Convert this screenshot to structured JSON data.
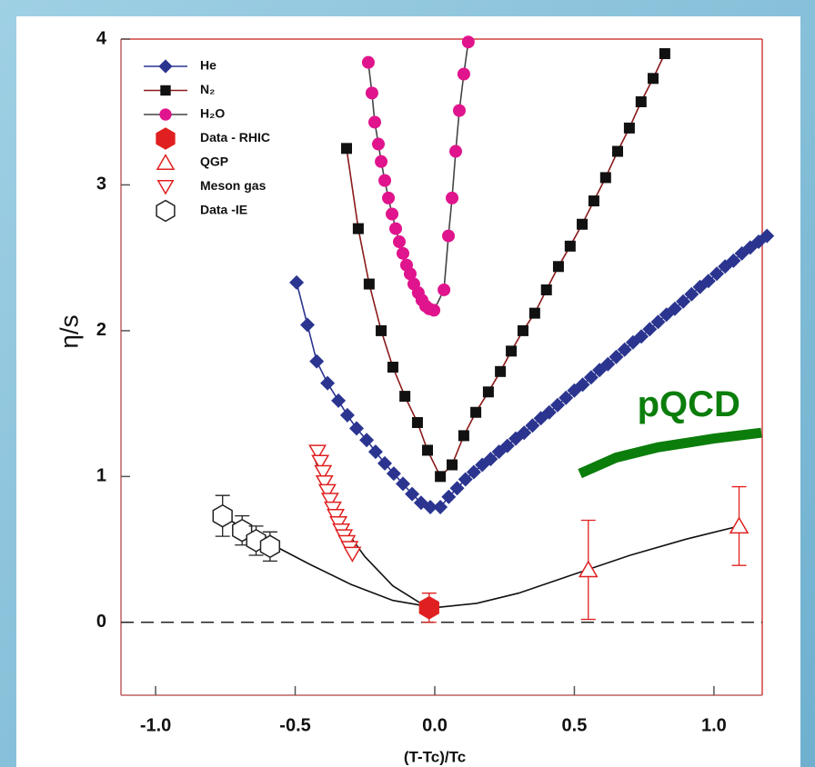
{
  "chart_data": {
    "type": "scatter",
    "xlabel": "(T-Tc)/Tc",
    "ylabel": "η/s",
    "xlim": [
      -1.124,
      1.173
    ],
    "ylim": [
      -0.5,
      4
    ],
    "xticks": [
      {
        "value": -1.0,
        "label": "-1.0"
      },
      -0.5,
      {
        "value": 0.0,
        "label": "0.0"
      },
      0.5,
      {
        "value": 1.0,
        "label": "1.0"
      }
    ],
    "yticks": [
      0,
      1,
      2,
      3,
      4
    ],
    "zero_line": true,
    "legend": "upper left",
    "series": [
      {
        "name": "He",
        "color": "#2b3590",
        "line_color": "#2b3590",
        "marker": "diamond",
        "filled": true,
        "line": true,
        "x": [
          -0.495,
          -0.456,
          -0.423,
          -0.384,
          -0.345,
          -0.313,
          -0.28,
          -0.244,
          -0.212,
          -0.179,
          -0.147,
          -0.114,
          -0.081,
          -0.049,
          -0.016,
          0.02,
          0.05,
          0.08,
          0.11,
          0.14,
          0.17,
          0.2,
          0.23,
          0.26,
          0.29,
          0.32,
          0.35,
          0.38,
          0.41,
          0.44,
          0.47,
          0.5,
          0.53,
          0.56,
          0.59,
          0.62,
          0.65,
          0.68,
          0.71,
          0.74,
          0.77,
          0.8,
          0.83,
          0.86,
          0.89,
          0.92,
          0.95,
          0.98,
          1.01,
          1.04,
          1.07,
          1.1,
          1.13,
          1.16,
          1.19
        ],
        "values": [
          2.33,
          2.04,
          1.79,
          1.64,
          1.52,
          1.42,
          1.33,
          1.25,
          1.17,
          1.09,
          1.02,
          0.95,
          0.88,
          0.82,
          0.79,
          0.79,
          0.86,
          0.92,
          0.98,
          1.03,
          1.08,
          1.12,
          1.17,
          1.21,
          1.26,
          1.3,
          1.35,
          1.4,
          1.44,
          1.49,
          1.54,
          1.59,
          1.63,
          1.68,
          1.73,
          1.77,
          1.82,
          1.87,
          1.92,
          1.96,
          2.01,
          2.06,
          2.11,
          2.15,
          2.2,
          2.25,
          2.3,
          2.34,
          2.39,
          2.44,
          2.48,
          2.53,
          2.57,
          2.61,
          2.65
        ]
      },
      {
        "name": "N₂",
        "color": "#111111",
        "line_color": "#8b1a1a",
        "marker": "square",
        "filled": true,
        "line": true,
        "x": [
          -0.316,
          -0.274,
          -0.235,
          -0.192,
          -0.15,
          -0.107,
          -0.062,
          -0.026,
          0.02,
          0.062,
          0.104,
          0.147,
          0.192,
          0.235,
          0.274,
          0.316,
          0.358,
          0.4,
          0.443,
          0.485,
          0.528,
          0.57,
          0.612,
          0.655,
          0.697,
          0.739,
          0.782,
          0.824
        ],
        "values": [
          3.25,
          2.7,
          2.32,
          2.0,
          1.75,
          1.55,
          1.37,
          1.18,
          1.0,
          1.08,
          1.28,
          1.44,
          1.58,
          1.72,
          1.86,
          2.0,
          2.12,
          2.28,
          2.44,
          2.58,
          2.73,
          2.89,
          3.05,
          3.23,
          3.39,
          3.57,
          3.73,
          3.9
        ]
      },
      {
        "name": "H₂O",
        "color": "#e0148c",
        "line_color": "#444444",
        "marker": "circle",
        "filled": true,
        "line": true,
        "x": [
          -0.238,
          -0.225,
          -0.215,
          -0.202,
          -0.192,
          -0.179,
          -0.166,
          -0.153,
          -0.14,
          -0.127,
          -0.114,
          -0.101,
          -0.088,
          -0.075,
          -0.059,
          -0.046,
          -0.033,
          -0.02,
          -0.003,
          0.033,
          0.049,
          0.062,
          0.075,
          0.088,
          0.104,
          0.12
        ],
        "values": [
          3.84,
          3.63,
          3.43,
          3.28,
          3.16,
          3.03,
          2.91,
          2.8,
          2.7,
          2.61,
          2.53,
          2.45,
          2.39,
          2.32,
          2.26,
          2.21,
          2.17,
          2.15,
          2.14,
          2.28,
          2.65,
          2.91,
          3.23,
          3.51,
          3.76,
          3.98
        ]
      },
      {
        "name": "Data - RHIC",
        "color": "#e02020",
        "marker": "hexagon",
        "filled": true,
        "line": false,
        "x": [
          -0.02
        ],
        "values": [
          0.1
        ],
        "errors": [
          0.1
        ]
      },
      {
        "name": "QGP",
        "color": "#e02020",
        "marker": "triangle-up",
        "filled": false,
        "line": false,
        "x": [
          0.55,
          1.09
        ],
        "values": [
          0.36,
          0.66
        ],
        "errors": [
          0.34,
          0.27
        ]
      },
      {
        "name": "Meson gas",
        "color": "#e02020",
        "marker": "triangle-down",
        "filled": false,
        "line": false,
        "x": [
          -0.42,
          -0.41,
          -0.4,
          -0.395,
          -0.385,
          -0.375,
          -0.365,
          -0.355,
          -0.345,
          -0.335,
          -0.325,
          -0.315,
          -0.305,
          -0.295
        ],
        "values": [
          1.17,
          1.1,
          1.03,
          0.96,
          0.9,
          0.84,
          0.78,
          0.73,
          0.68,
          0.63,
          0.59,
          0.55,
          0.51,
          0.47
        ]
      },
      {
        "name": "Data -IE",
        "color": "#222222",
        "marker": "hexagon",
        "filled": false,
        "line": false,
        "x": [
          -0.76,
          -0.69,
          -0.64,
          -0.59
        ],
        "values": [
          0.73,
          0.63,
          0.56,
          0.52
        ],
        "errors": [
          0.14,
          0.1,
          0.1,
          0.1
        ]
      },
      {
        "color": "#111111",
        "line_color": "#111111",
        "marker": "none",
        "line": true,
        "x": [
          -0.76,
          -0.6,
          -0.45,
          -0.3,
          -0.15,
          0,
          0.15,
          0.3,
          0.5,
          0.7,
          0.9,
          1.09
        ],
        "values": [
          0.73,
          0.55,
          0.4,
          0.26,
          0.15,
          0.1,
          0.13,
          0.2,
          0.33,
          0.46,
          0.57,
          0.66
        ]
      },
      {
        "color": "#111111",
        "line_color": "#111111",
        "marker": "none",
        "line": true,
        "x": [
          -0.43,
          -0.38,
          -0.33,
          -0.25,
          -0.15,
          -0.05,
          0
        ],
        "values": [
          1.12,
          0.88,
          0.66,
          0.45,
          0.25,
          0.13,
          0.1
        ]
      }
    ],
    "annotation": {
      "text": "pQCD",
      "x": 0.91,
      "y": 1.48,
      "color": "#0b7d0b"
    },
    "pqcd_curve": {
      "x": [
        0.52,
        0.65,
        0.8,
        1.0,
        1.17
      ],
      "values": [
        1.02,
        1.13,
        1.2,
        1.26,
        1.3
      ],
      "color": "#0b7d0b"
    }
  }
}
